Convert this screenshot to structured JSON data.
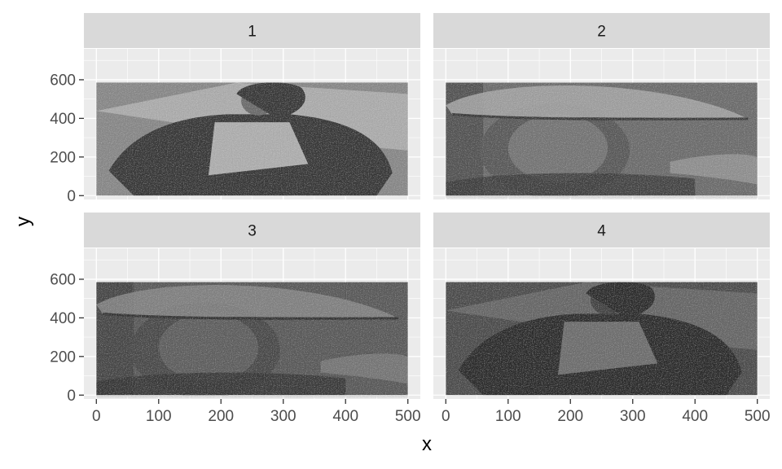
{
  "chart_data": {
    "type": "faceted-image",
    "xlabel": "x",
    "ylabel": "y",
    "xlim": [
      -20,
      520
    ],
    "ylim": [
      -20,
      760
    ],
    "x_ticks": [
      0,
      100,
      200,
      300,
      400,
      500
    ],
    "y_ticks": [
      0,
      200,
      400,
      600
    ],
    "grid": true,
    "facets": [
      {
        "label": "1",
        "image": {
          "x": [
            0,
            500
          ],
          "y": [
            0,
            585
          ],
          "brightness": "light",
          "subject": "person in leather jacket"
        }
      },
      {
        "label": "2",
        "image": {
          "x": [
            0,
            500
          ],
          "y": [
            0,
            585
          ],
          "brightness": "medium",
          "subject": "man in flat cap"
        }
      },
      {
        "label": "3",
        "image": {
          "x": [
            0,
            500
          ],
          "y": [
            0,
            585
          ],
          "brightness": "dark",
          "subject": "man in flat cap"
        }
      },
      {
        "label": "4",
        "image": {
          "x": [
            0,
            500
          ],
          "y": [
            0,
            585
          ],
          "brightness": "darker",
          "subject": "person in leather jacket"
        }
      }
    ]
  },
  "colors": {
    "panel_bg": "#ebebeb",
    "grid_major": "#ffffff",
    "strip_bg": "#d9d9d9",
    "axis_text": "#4d4d4d",
    "tick": "#333333"
  }
}
